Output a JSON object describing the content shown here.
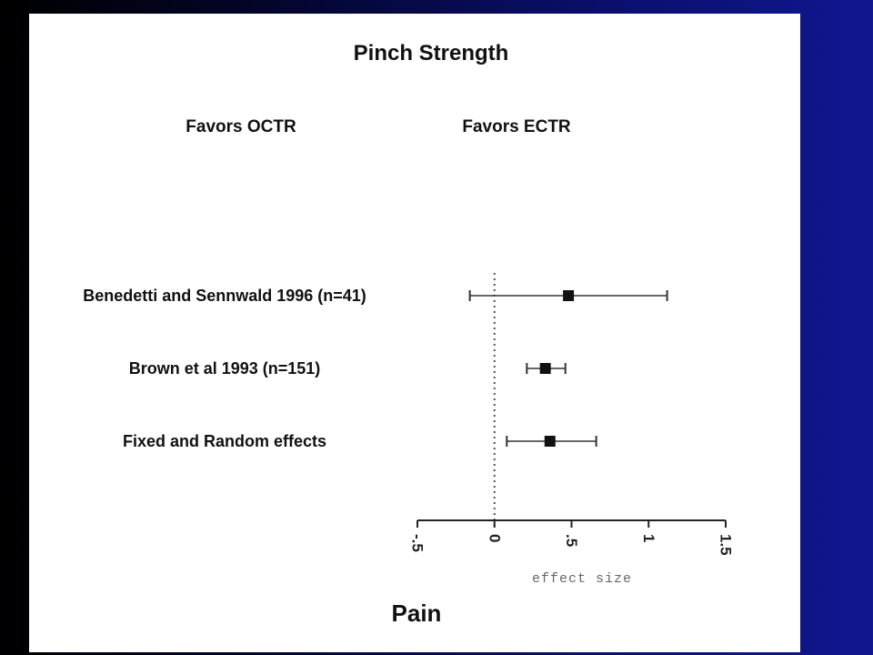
{
  "chart_data": {
    "type": "forest",
    "title": "Pinch Strength",
    "favors_left": "Favors OCTR",
    "favors_right": "Favors ECTR",
    "xlabel": "effect size",
    "xlim": [
      -0.5,
      1.5
    ],
    "xticks": [
      -0.5,
      0,
      0.5,
      1,
      1.5
    ],
    "xtick_labels": [
      "-.5",
      "0",
      ".5",
      "1",
      "1.5"
    ],
    "reference_line": 0,
    "studies": [
      {
        "label": "Benedetti and Sennwald 1996  (n=41)",
        "estimate": 0.48,
        "lower": -0.16,
        "upper": 1.12
      },
      {
        "label": "Brown et al 1993  (n=151)",
        "estimate": 0.33,
        "lower": 0.21,
        "upper": 0.46
      },
      {
        "label": "Fixed and Random effects",
        "estimate": 0.36,
        "lower": 0.08,
        "upper": 0.66
      }
    ],
    "footer": "Pain"
  }
}
